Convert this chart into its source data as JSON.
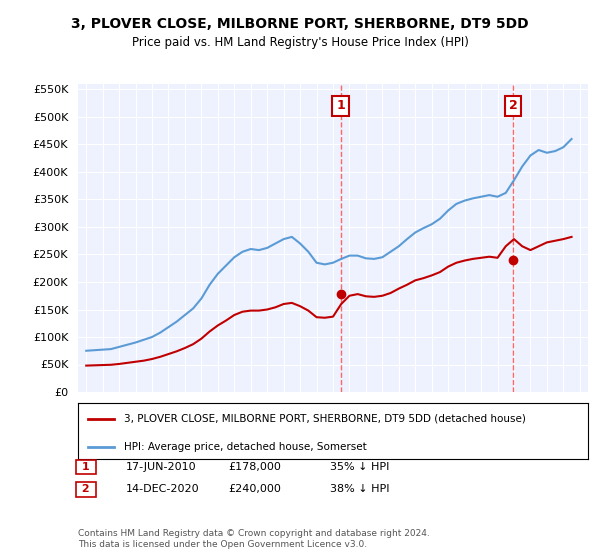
{
  "title": "3, PLOVER CLOSE, MILBORNE PORT, SHERBORNE, DT9 5DD",
  "subtitle": "Price paid vs. HM Land Registry's House Price Index (HPI)",
  "hpi_label": "HPI: Average price, detached house, Somerset",
  "property_label": "3, PLOVER CLOSE, MILBORNE PORT, SHERBORNE, DT9 5DD (detached house)",
  "hpi_color": "#5B9BD5",
  "property_color": "#C00000",
  "annotation1_color": "#C00000",
  "annotation2_color": "#C00000",
  "marker_color1": "#C00000",
  "marker_color2": "#C00000",
  "background_plot": "#EEF2FF",
  "annotation_box_color": "#C00000",
  "vline_color": "#FF6666",
  "ylabel_start": 0,
  "ylabel_end": 550000,
  "ylabel_step": 50000,
  "footnote": "Contains HM Land Registry data © Crown copyright and database right 2024.\nThis data is licensed under the Open Government Licence v3.0.",
  "sale1": {
    "date_label": "17-JUN-2010",
    "price": 178000,
    "pct": "35% ↓ HPI",
    "date_num": 2010.46
  },
  "sale2": {
    "date_label": "14-DEC-2020",
    "price": 240000,
    "pct": "38% ↓ HPI",
    "date_num": 2020.95
  },
  "hpi_x": [
    1995.0,
    1995.5,
    1996.0,
    1996.5,
    1997.0,
    1997.5,
    1998.0,
    1998.5,
    1999.0,
    1999.5,
    2000.0,
    2000.5,
    2001.0,
    2001.5,
    2002.0,
    2002.5,
    2003.0,
    2003.5,
    2004.0,
    2004.5,
    2005.0,
    2005.5,
    2006.0,
    2006.5,
    2007.0,
    2007.5,
    2008.0,
    2008.5,
    2009.0,
    2009.5,
    2010.0,
    2010.5,
    2011.0,
    2011.5,
    2012.0,
    2012.5,
    2013.0,
    2013.5,
    2014.0,
    2014.5,
    2015.0,
    2015.5,
    2016.0,
    2016.5,
    2017.0,
    2017.5,
    2018.0,
    2018.5,
    2019.0,
    2019.5,
    2020.0,
    2020.5,
    2021.0,
    2021.5,
    2022.0,
    2022.5,
    2023.0,
    2023.5,
    2024.0,
    2024.5
  ],
  "hpi_y": [
    75000,
    76000,
    77000,
    78000,
    82000,
    86000,
    90000,
    95000,
    100000,
    108000,
    118000,
    128000,
    140000,
    152000,
    170000,
    195000,
    215000,
    230000,
    245000,
    255000,
    260000,
    258000,
    262000,
    270000,
    278000,
    282000,
    270000,
    255000,
    235000,
    232000,
    235000,
    242000,
    248000,
    248000,
    243000,
    242000,
    245000,
    255000,
    265000,
    278000,
    290000,
    298000,
    305000,
    315000,
    330000,
    342000,
    348000,
    352000,
    355000,
    358000,
    355000,
    362000,
    385000,
    410000,
    430000,
    440000,
    435000,
    438000,
    445000,
    460000
  ],
  "prop_x": [
    1995.0,
    1995.5,
    1996.0,
    1996.5,
    1997.0,
    1997.5,
    1998.0,
    1998.5,
    1999.0,
    1999.5,
    2000.0,
    2000.5,
    2001.0,
    2001.5,
    2002.0,
    2002.5,
    2003.0,
    2003.5,
    2004.0,
    2004.5,
    2005.0,
    2005.5,
    2006.0,
    2006.5,
    2007.0,
    2007.5,
    2008.0,
    2008.5,
    2009.0,
    2009.5,
    2010.0,
    2010.5,
    2011.0,
    2011.5,
    2012.0,
    2012.5,
    2013.0,
    2013.5,
    2014.0,
    2014.5,
    2015.0,
    2015.5,
    2016.0,
    2016.5,
    2017.0,
    2017.5,
    2018.0,
    2018.5,
    2019.0,
    2019.5,
    2020.0,
    2020.5,
    2021.0,
    2021.5,
    2022.0,
    2022.5,
    2023.0,
    2023.5,
    2024.0,
    2024.5
  ],
  "prop_y": [
    48000,
    48500,
    49000,
    49500,
    51000,
    53000,
    55000,
    57000,
    60000,
    64000,
    69000,
    74000,
    80000,
    87000,
    97000,
    110000,
    121000,
    130000,
    140000,
    146000,
    148000,
    148000,
    150000,
    154000,
    160000,
    162000,
    156000,
    148000,
    136000,
    135000,
    137000,
    160000,
    175000,
    178000,
    174000,
    173000,
    175000,
    180000,
    188000,
    195000,
    203000,
    207000,
    212000,
    218000,
    228000,
    235000,
    239000,
    242000,
    244000,
    246000,
    244000,
    265000,
    278000,
    265000,
    258000,
    265000,
    272000,
    275000,
    278000,
    282000
  ]
}
